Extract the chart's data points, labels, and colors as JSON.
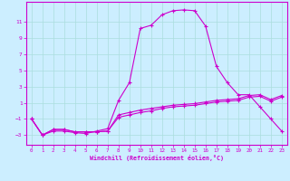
{
  "xlabel": "Windchill (Refroidissement éolien,°C)",
  "bg_color": "#cceeff",
  "line_color": "#cc00cc",
  "grid_color": "#aadddd",
  "axis_color": "#cc00cc",
  "xlim": [
    -0.5,
    23.5
  ],
  "ylim": [
    -4.2,
    13.5
  ],
  "yticks": [
    -3,
    -1,
    1,
    3,
    5,
    7,
    9,
    11
  ],
  "xticks": [
    0,
    1,
    2,
    3,
    4,
    5,
    6,
    7,
    8,
    9,
    10,
    11,
    12,
    13,
    14,
    15,
    16,
    17,
    18,
    19,
    20,
    21,
    22,
    23
  ],
  "line_main_x": [
    0,
    1,
    2,
    3,
    4,
    5,
    6,
    7,
    8,
    9,
    10,
    11,
    12,
    13,
    14,
    15,
    16,
    17,
    18,
    19,
    20,
    21,
    22,
    23
  ],
  "line_main_y": [
    -1,
    -3,
    -2.5,
    -2.5,
    -2.7,
    -2.8,
    -2.5,
    -2.2,
    1.3,
    3.5,
    10.2,
    10.6,
    11.9,
    12.4,
    12.5,
    12.4,
    10.5,
    5.5,
    3.5,
    2.0,
    2.0,
    0.5,
    -1,
    -2.5
  ],
  "line_low1_x": [
    0,
    1,
    2,
    3,
    4,
    5,
    6,
    7,
    8,
    9,
    10,
    11,
    12,
    13,
    14,
    15,
    16,
    17,
    18,
    19,
    20,
    21,
    22,
    23
  ],
  "line_low1_y": [
    -1,
    -3,
    -2.3,
    -2.3,
    -2.6,
    -2.6,
    -2.6,
    -2.5,
    -0.8,
    -0.5,
    -0.2,
    0.0,
    0.3,
    0.5,
    0.6,
    0.7,
    0.9,
    1.1,
    1.2,
    1.3,
    1.7,
    1.8,
    1.2,
    1.7
  ],
  "line_low2_x": [
    0,
    1,
    2,
    3,
    4,
    5,
    6,
    7,
    8,
    9,
    10,
    11,
    12,
    13,
    14,
    15,
    16,
    17,
    18,
    19,
    20,
    21,
    22,
    23
  ],
  "line_low2_y": [
    -1,
    -3,
    -2.3,
    -2.3,
    -2.6,
    -2.6,
    -2.6,
    -2.5,
    -0.5,
    -0.2,
    0.1,
    0.3,
    0.5,
    0.7,
    0.8,
    0.9,
    1.1,
    1.3,
    1.4,
    1.5,
    1.9,
    2.0,
    1.4,
    1.9
  ]
}
